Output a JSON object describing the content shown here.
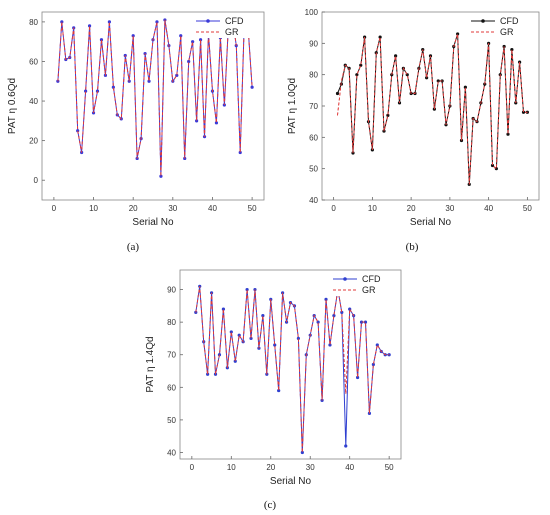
{
  "chart_data": [
    {
      "type": "line",
      "panel": "a",
      "caption": "(a)",
      "xlabel": "Serial No",
      "ylabel": "PAT η 0.6Qd",
      "xlim": [
        -3,
        53
      ],
      "ylim": [
        -10,
        85
      ],
      "xticks": [
        0,
        10,
        20,
        30,
        40,
        50
      ],
      "yticks": [
        0,
        20,
        40,
        60,
        80
      ],
      "legend": "top-right",
      "x": [
        1,
        2,
        3,
        4,
        5,
        6,
        7,
        8,
        9,
        10,
        11,
        12,
        13,
        14,
        15,
        16,
        17,
        18,
        19,
        20,
        21,
        22,
        23,
        24,
        25,
        26,
        27,
        28,
        29,
        30,
        31,
        32,
        33,
        34,
        35,
        36,
        37,
        38,
        39,
        40,
        41,
        42,
        43,
        44,
        45,
        46,
        47,
        48,
        49,
        50
      ],
      "series": [
        {
          "name": "CFD",
          "color": "#3a3ad8",
          "style": "solid",
          "marker": true,
          "values": [
            50,
            80,
            61,
            62,
            77,
            25,
            14,
            45,
            78,
            34,
            45,
            71,
            53,
            80,
            47,
            33,
            31,
            63,
            50,
            73,
            11,
            21,
            64,
            50,
            71,
            80,
            2,
            81,
            68,
            50,
            53,
            73,
            11,
            60,
            70,
            30,
            71,
            22,
            74,
            45,
            29,
            72,
            38,
            77,
            82,
            68,
            14,
            78,
            77,
            47
          ]
        },
        {
          "name": "GR",
          "color": "#e03a3a",
          "style": "dashed",
          "marker": false,
          "values": [
            50,
            80,
            61,
            62,
            77,
            25,
            14,
            45,
            78,
            34,
            45,
            71,
            53,
            80,
            47,
            33,
            31,
            63,
            50,
            73,
            11,
            21,
            64,
            50,
            71,
            80,
            2,
            81,
            68,
            50,
            53,
            73,
            11,
            60,
            70,
            30,
            71,
            22,
            74,
            45,
            29,
            72,
            38,
            77,
            82,
            68,
            14,
            78,
            77,
            47
          ]
        }
      ]
    },
    {
      "type": "line",
      "panel": "b",
      "caption": "(b)",
      "xlabel": "Serial No",
      "ylabel": "PAT η 1.0Qd",
      "xlim": [
        -3,
        53
      ],
      "ylim": [
        40,
        100
      ],
      "xticks": [
        0,
        10,
        20,
        30,
        40,
        50
      ],
      "yticks": [
        40,
        50,
        60,
        70,
        80,
        90,
        100
      ],
      "legend": "top-right",
      "x": [
        1,
        2,
        3,
        4,
        5,
        6,
        7,
        8,
        9,
        10,
        11,
        12,
        13,
        14,
        15,
        16,
        17,
        18,
        19,
        20,
        21,
        22,
        23,
        24,
        25,
        26,
        27,
        28,
        29,
        30,
        31,
        32,
        33,
        34,
        35,
        36,
        37,
        38,
        39,
        40,
        41,
        42,
        43,
        44,
        45,
        46,
        47,
        48,
        49,
        50
      ],
      "series": [
        {
          "name": "CFD",
          "color": "#111111",
          "style": "solid",
          "marker": true,
          "values": [
            74,
            77,
            83,
            82,
            55,
            80,
            83,
            92,
            65,
            56,
            87,
            92,
            62,
            67,
            80,
            86,
            71,
            82,
            80,
            74,
            74,
            82,
            88,
            79,
            86,
            69,
            78,
            78,
            64,
            70,
            89,
            93,
            59,
            76,
            45,
            66,
            65,
            71,
            77,
            90,
            51,
            50,
            80,
            89,
            61,
            88,
            71,
            84,
            68,
            68
          ]
        },
        {
          "name": "GR",
          "color": "#e03a3a",
          "style": "dashed",
          "marker": false,
          "values": [
            67,
            78,
            83,
            82,
            55,
            80,
            83,
            92,
            65,
            56,
            87,
            92,
            62,
            67,
            80,
            86,
            71,
            82,
            80,
            74,
            74,
            82,
            88,
            79,
            86,
            69,
            78,
            78,
            64,
            70,
            89,
            93,
            59,
            76,
            45,
            66,
            65,
            71,
            77,
            90,
            51,
            50,
            80,
            89,
            61,
            88,
            71,
            84,
            68,
            68
          ]
        }
      ]
    },
    {
      "type": "line",
      "panel": "c",
      "caption": "(c)",
      "xlabel": "Serial No",
      "ylabel": "PAT η 1.4Qd",
      "xlim": [
        -3,
        53
      ],
      "ylim": [
        38,
        96
      ],
      "xticks": [
        0,
        10,
        20,
        30,
        40,
        50
      ],
      "yticks": [
        40,
        50,
        60,
        70,
        80,
        90
      ],
      "legend": "top-right",
      "x": [
        1,
        2,
        3,
        4,
        5,
        6,
        7,
        8,
        9,
        10,
        11,
        12,
        13,
        14,
        15,
        16,
        17,
        18,
        19,
        20,
        21,
        22,
        23,
        24,
        25,
        26,
        27,
        28,
        29,
        30,
        31,
        32,
        33,
        34,
        35,
        36,
        37,
        38,
        39,
        40,
        41,
        42,
        43,
        44,
        45,
        46,
        47,
        48,
        49,
        50
      ],
      "series": [
        {
          "name": "CFD",
          "color": "#2f3fd0",
          "style": "solid",
          "marker": true,
          "values": [
            83,
            91,
            74,
            64,
            89,
            64,
            70,
            84,
            66,
            77,
            68,
            76,
            74,
            90,
            75,
            90,
            72,
            82,
            64,
            87,
            73,
            59,
            89,
            80,
            86,
            85,
            75,
            40,
            70,
            76,
            82,
            80,
            56,
            87,
            73,
            82,
            90,
            83,
            42,
            84,
            82,
            63,
            80,
            80,
            52,
            67,
            73,
            71,
            70,
            70
          ]
        },
        {
          "name": "GR",
          "color": "#e03a3a",
          "style": "dashed",
          "marker": false,
          "values": [
            83,
            91,
            74,
            64,
            89,
            64,
            70,
            84,
            66,
            77,
            68,
            76,
            74,
            90,
            75,
            90,
            72,
            82,
            64,
            87,
            73,
            59,
            89,
            80,
            86,
            85,
            75,
            40,
            70,
            76,
            82,
            80,
            56,
            87,
            73,
            82,
            90,
            83,
            58,
            84,
            82,
            63,
            80,
            80,
            52,
            67,
            73,
            71,
            70,
            70
          ]
        }
      ]
    }
  ]
}
